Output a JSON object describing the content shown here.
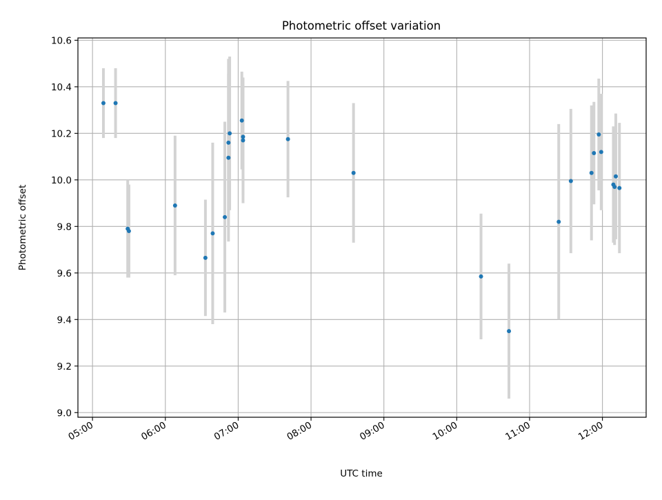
{
  "chart_data": {
    "type": "scatter",
    "title": "Photometric offset variation",
    "xlabel": "UTC time",
    "ylabel": "Photometric offset",
    "xlim": [
      "04:48",
      "12:36"
    ],
    "ylim": [
      8.98,
      10.61
    ],
    "xticks": [
      "05:00",
      "06:00",
      "07:00",
      "08:00",
      "09:00",
      "10:00",
      "11:00",
      "12:00"
    ],
    "yticks": [
      9.0,
      9.2,
      9.4,
      9.6,
      9.8,
      10.0,
      10.2,
      10.4,
      10.6
    ],
    "ytick_labels": [
      "9.0",
      "9.2",
      "9.4",
      "9.6",
      "9.8",
      "10.0",
      "10.2",
      "10.4",
      "10.6"
    ],
    "grid": true,
    "legend": "none",
    "colors": {
      "point": "#1f77b4",
      "errorbar": "#d3d3d3",
      "grid": "#b0b0b0"
    },
    "series": [
      {
        "points": [
          {
            "x": "05:09",
            "y": 10.33,
            "err": 0.15
          },
          {
            "x": "05:19",
            "y": 10.33,
            "err": 0.15
          },
          {
            "x": "05:29",
            "y": 9.79,
            "err": 0.21
          },
          {
            "x": "05:30",
            "y": 9.78,
            "err": 0.2
          },
          {
            "x": "06:08",
            "y": 9.89,
            "err": 0.3
          },
          {
            "x": "06:33",
            "y": 9.665,
            "err": 0.25
          },
          {
            "x": "06:39",
            "y": 9.77,
            "err": 0.39
          },
          {
            "x": "06:49",
            "y": 9.84,
            "err": 0.41
          },
          {
            "x": "06:52",
            "y": 10.16,
            "err": 0.36
          },
          {
            "x": "06:52",
            "y": 10.095,
            "err": 0.36
          },
          {
            "x": "06:53",
            "y": 10.2,
            "err": 0.33
          },
          {
            "x": "07:03",
            "y": 10.255,
            "err": 0.21
          },
          {
            "x": "07:04",
            "y": 10.185,
            "err": 0.25
          },
          {
            "x": "07:04",
            "y": 10.17,
            "err": 0.27
          },
          {
            "x": "07:41",
            "y": 10.175,
            "err": 0.25
          },
          {
            "x": "08:35",
            "y": 10.03,
            "err": 0.3
          },
          {
            "x": "10:20",
            "y": 9.585,
            "err": 0.27
          },
          {
            "x": "10:43",
            "y": 9.35,
            "err": 0.29
          },
          {
            "x": "11:24",
            "y": 9.82,
            "err": 0.42
          },
          {
            "x": "11:34",
            "y": 9.995,
            "err": 0.31
          },
          {
            "x": "11:51",
            "y": 10.03,
            "err": 0.29
          },
          {
            "x": "11:53",
            "y": 10.115,
            "err": 0.22
          },
          {
            "x": "11:57",
            "y": 10.195,
            "err": 0.24
          },
          {
            "x": "11:59",
            "y": 10.12,
            "err": 0.25
          },
          {
            "x": "12:09",
            "y": 9.98,
            "err": 0.25
          },
          {
            "x": "12:10",
            "y": 9.97,
            "err": 0.25
          },
          {
            "x": "12:11",
            "y": 10.015,
            "err": 0.27
          },
          {
            "x": "12:14",
            "y": 9.965,
            "err": 0.28
          }
        ]
      }
    ]
  }
}
